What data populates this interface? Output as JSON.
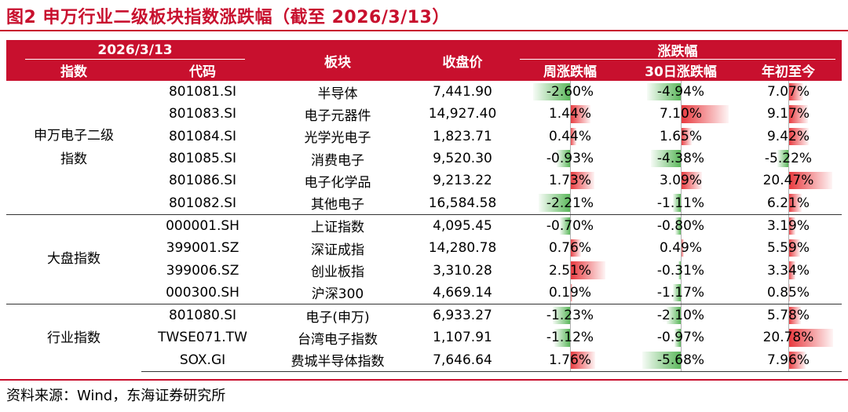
{
  "title": "图2  申万行业二级板块指数涨跌幅（截至 2026/3/13）",
  "source": "资料来源：Wind，东海证券研究所",
  "colors": {
    "accent": "#c8102e",
    "positive": "#e8363b",
    "negative": "#5cb85c"
  },
  "header": {
    "date": "2026/3/13",
    "change_group": "涨跌幅",
    "index": "指数",
    "code": "代码",
    "sector": "板块",
    "close": "收盘价",
    "week": "周涨跌幅",
    "d30": "30日涨跌幅",
    "ytd": "年初至今"
  },
  "groups": [
    {
      "label": "申万电子二级\n指数",
      "rows": [
        {
          "code": "801081.SI",
          "name": "半导体",
          "close": "7,441.90",
          "week": "-2.60%",
          "d30": "-4.94%",
          "ytd": "7.07%"
        },
        {
          "code": "801083.SI",
          "name": "电子元器件",
          "close": "14,927.40",
          "week": "1.44%",
          "d30": "7.10%",
          "ytd": "9.17%"
        },
        {
          "code": "801084.SI",
          "name": "光学光电子",
          "close": "1,823.71",
          "week": "0.44%",
          "d30": "1.65%",
          "ytd": "9.42%"
        },
        {
          "code": "801085.SI",
          "name": "消费电子",
          "close": "9,520.30",
          "week": "-0.93%",
          "d30": "-4.38%",
          "ytd": "-5.22%"
        },
        {
          "code": "801086.SI",
          "name": "电子化学品",
          "close": "9,213.22",
          "week": "1.73%",
          "d30": "3.09%",
          "ytd": "20.47%"
        },
        {
          "code": "801082.SI",
          "name": "其他电子",
          "close": "16,584.58",
          "week": "-2.21%",
          "d30": "-1.11%",
          "ytd": "6.21%"
        }
      ]
    },
    {
      "label": "大盘指数",
      "rows": [
        {
          "code": "000001.SH",
          "name": "上证指数",
          "close": "4,095.45",
          "week": "-0.70%",
          "d30": "-0.80%",
          "ytd": "3.19%"
        },
        {
          "code": "399001.SZ",
          "name": "深证成指",
          "close": "14,280.78",
          "week": "0.76%",
          "d30": "0.49%",
          "ytd": "5.59%"
        },
        {
          "code": "399006.SZ",
          "name": "创业板指",
          "close": "3,310.28",
          "week": "2.51%",
          "d30": "-0.31%",
          "ytd": "3.34%"
        },
        {
          "code": "000300.SH",
          "name": "沪深300",
          "close": "4,669.14",
          "week": "0.19%",
          "d30": "-1.17%",
          "ytd": "0.85%"
        }
      ]
    },
    {
      "label": "行业指数",
      "rows": [
        {
          "code": "801080.SI",
          "name": "电子(申万)",
          "close": "6,933.27",
          "week": "-1.23%",
          "d30": "-2.10%",
          "ytd": "5.78%"
        },
        {
          "code": "TWSE071.TW",
          "name": "台湾电子指数",
          "close": "1,107.91",
          "week": "-1.12%",
          "d30": "-0.97%",
          "ytd": "20.78%"
        },
        {
          "code": "SOX.GI",
          "name": "费城半导体指数",
          "close": "7,646.64",
          "week": "1.76%",
          "d30": "-5.68%",
          "ytd": "7.96%"
        }
      ]
    }
  ]
}
